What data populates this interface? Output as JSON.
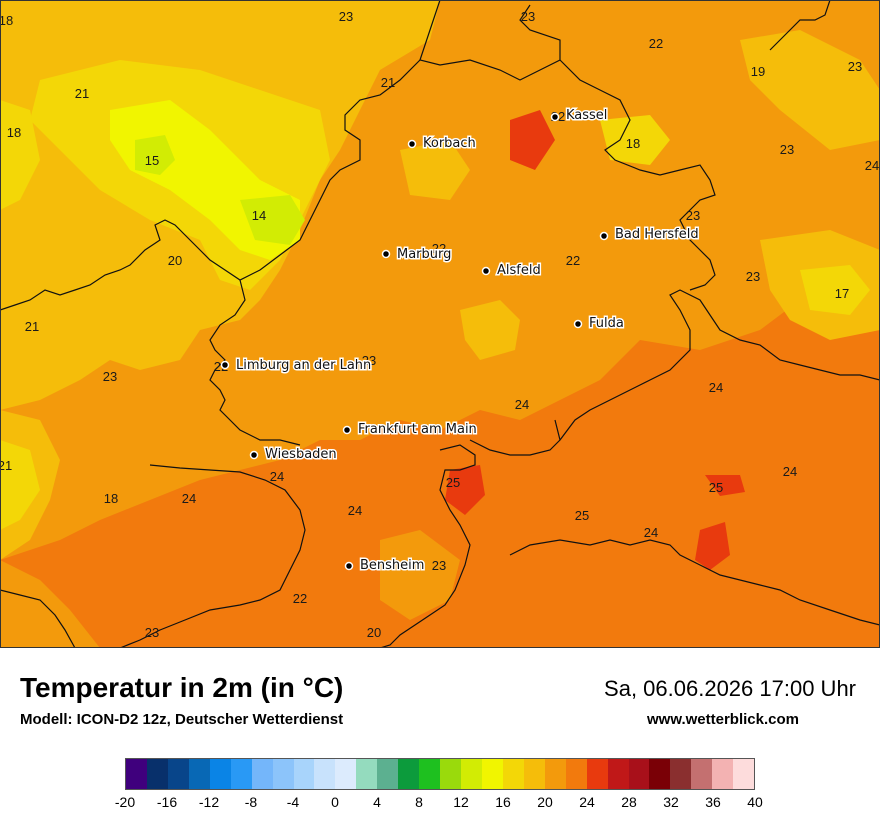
{
  "header": {
    "title": "Temperatur in 2m (in °C)",
    "model": "Modell: ICON-D2 12z, Deutscher Wetterdienst",
    "datetime": "Sa, 06.06.2026 17:00 Uhr",
    "site": "www.wetterblick.com"
  },
  "map": {
    "cities": [
      {
        "name": "Kassel"
      },
      {
        "name": "Korbach"
      },
      {
        "name": "Bad Hersfeld"
      },
      {
        "name": "Marburg"
      },
      {
        "name": "Alsfeld"
      },
      {
        "name": "Fulda"
      },
      {
        "name": "Limburg an der Lahn"
      },
      {
        "name": "Frankfurt am Main"
      },
      {
        "name": "Wiesbaden"
      },
      {
        "name": "Bensheim"
      }
    ],
    "temperature_labels": [
      "23",
      "23",
      "22",
      "19",
      "23",
      "18",
      "21",
      "21",
      "18",
      "15",
      "14",
      "18",
      "23",
      "24",
      "23",
      "22",
      "22",
      "23",
      "20",
      "17",
      "21",
      "23",
      "24",
      "24",
      "25",
      "24",
      "25",
      "24",
      "25",
      "21",
      "18",
      "24",
      "24",
      "24",
      "23",
      "20",
      "22",
      "23",
      "22",
      "23",
      "22"
    ]
  },
  "legend": {
    "unit": "°C",
    "colors": [
      "#3f007d",
      "#08306b",
      "#08458a",
      "#0868b5",
      "#0a84e6",
      "#2999f5",
      "#74b6fa",
      "#8cc4fa",
      "#a8d4fb",
      "#c8e2fc",
      "#dcebfd",
      "#94dbbe",
      "#5cb090",
      "#0c9b3c",
      "#1ec01f",
      "#9ada0c",
      "#d2ec04",
      "#f1f500",
      "#f3d707",
      "#f5bd0a",
      "#f39a0c",
      "#f27a0d",
      "#e83a0e",
      "#c01818",
      "#a8101a",
      "#7a0006",
      "#8a2f2f",
      "#c47070",
      "#f3b2b2",
      "#fddcdc"
    ],
    "ticks": [
      "-20",
      "-16",
      "-12",
      "-8",
      "-4",
      "0",
      "4",
      "8",
      "12",
      "16",
      "20",
      "24",
      "28",
      "32",
      "36",
      "40"
    ],
    "min": -20,
    "max": 40
  }
}
